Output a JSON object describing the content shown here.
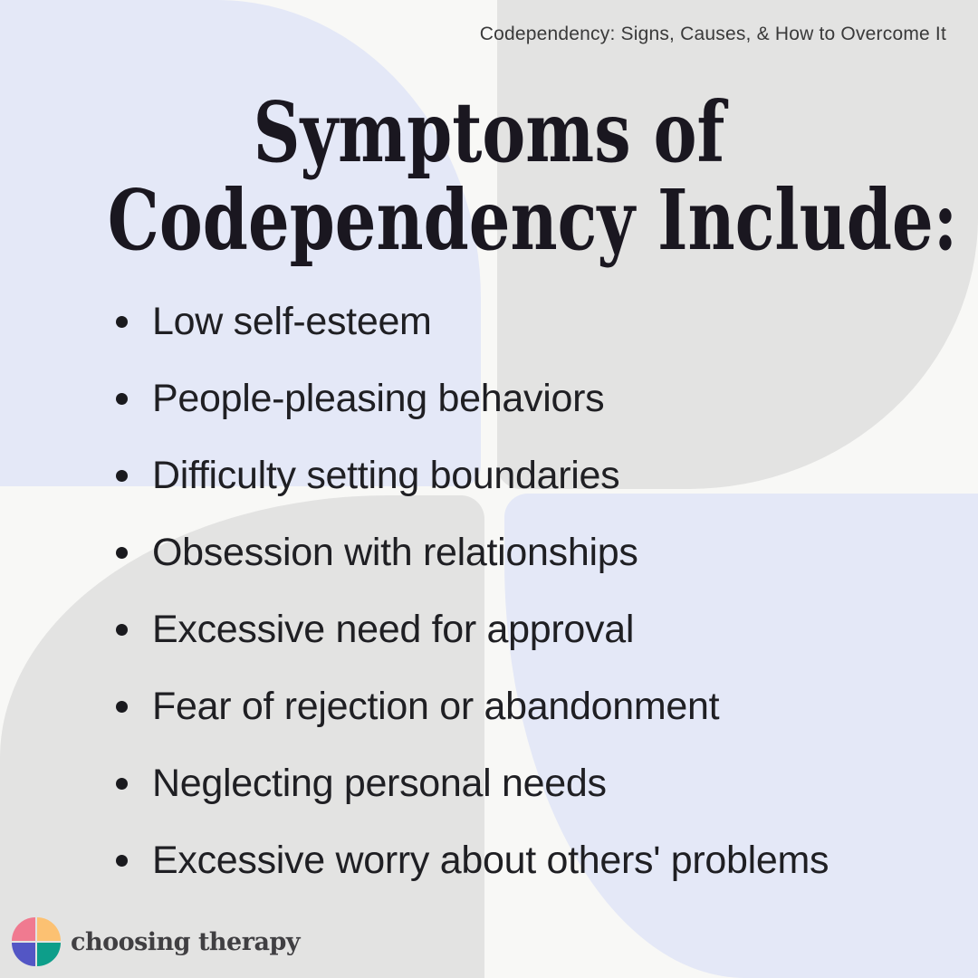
{
  "page": {
    "header_label": "Codependency: Signs, Causes, & How to Overcome It"
  },
  "title": {
    "line1": "Symptoms of",
    "line2": "Codependency Include:"
  },
  "symptoms": [
    "Low self-esteem",
    "People-pleasing behaviors",
    "Difficulty setting boundaries",
    "Obsession with relationships",
    "Excessive need for approval",
    "Fear of rejection or abandonment",
    "Neglecting personal needs",
    "Excessive worry about others' problems"
  ],
  "logo": {
    "brand": "choosing therapy",
    "petals": [
      {
        "name": "petal-pink",
        "color": "#f07a90"
      },
      {
        "name": "petal-orange",
        "color": "#fcc172"
      },
      {
        "name": "petal-indigo",
        "color": "#5356c5"
      },
      {
        "name": "petal-teal",
        "color": "#0d9e8a"
      }
    ]
  },
  "colors": {
    "background": "#f8f8f6",
    "lavender": "#e4e8f7",
    "gray": "#e3e3e2",
    "title_text": "#1a1720",
    "body_text": "#1f1f23",
    "label_text": "#3a3a3a",
    "brand_text": "#403f42",
    "bullet_dot": "#1a1a1e"
  }
}
